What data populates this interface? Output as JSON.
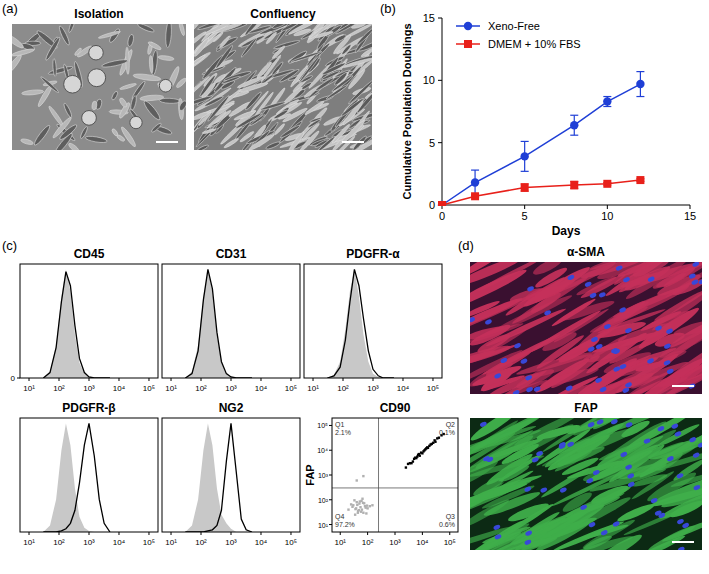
{
  "panel_labels": [
    "(a)",
    "(b)",
    "(c)",
    "(d)"
  ],
  "images": [
    {
      "title": "Isolation"
    },
    {
      "title": "Confluency"
    },
    {
      "title": "α-SMA"
    },
    {
      "title": "FAP"
    }
  ],
  "chart_data": [
    {
      "type": "line",
      "xlabel": "Days",
      "ylabel": "Cumulative Population Doublings",
      "x": [
        0,
        2,
        5,
        8,
        10,
        12
      ],
      "xlim": [
        0,
        15
      ],
      "xticks": [
        0,
        5,
        10,
        15
      ],
      "ylim": [
        0,
        15
      ],
      "yticks": [
        0,
        5,
        10,
        15
      ],
      "legend": "upper left",
      "series": [
        {
          "name": "Xeno-Free",
          "color": "#1f3fd6",
          "marker": "circle",
          "values": [
            0,
            1.8,
            3.9,
            6.4,
            8.3,
            9.7
          ],
          "error": [
            0,
            1.0,
            1.2,
            0.8,
            0.4,
            1.0
          ]
        },
        {
          "name": "DMEM + 10% FBS",
          "color": "#e8201a",
          "marker": "square",
          "values": [
            0,
            0.7,
            1.4,
            1.6,
            1.7,
            2.0
          ],
          "error": [
            0,
            0.1,
            0.3,
            0.3,
            0.1,
            0.1
          ]
        }
      ]
    },
    {
      "type": "line",
      "title": "CD45",
      "log": "x",
      "x": [
        30,
        50,
        80,
        120,
        170,
        240,
        340,
        480,
        700,
        1000,
        1500,
        2200,
        3200,
        5000
      ],
      "xlim": [
        5,
        200000
      ],
      "xticks": [
        {
          "value": 10,
          "label": "10¹"
        },
        {
          "value": 100,
          "label": "10²"
        },
        {
          "value": 1000,
          "label": "10³"
        },
        {
          "value": 10000,
          "label": "10⁴"
        },
        {
          "value": 100000,
          "label": "10⁵"
        }
      ],
      "ylim": [
        0,
        105
      ],
      "yticks": [
        0
      ],
      "series": [
        {
          "type": "area",
          "color": "#c8c8c8",
          "values": [
            0,
            6,
            30,
            75,
            100,
            80,
            40,
            14,
            4,
            1,
            0,
            0,
            0,
            0
          ]
        },
        {
          "type": "line",
          "color": "#000000",
          "values": [
            0,
            5,
            28,
            70,
            98,
            85,
            48,
            18,
            5,
            1,
            0,
            0,
            0,
            0
          ]
        }
      ]
    },
    {
      "type": "line",
      "title": "CD31",
      "log": "x",
      "tick_labels": "x",
      "x": [
        30,
        50,
        80,
        120,
        170,
        240,
        340,
        480,
        700,
        1000,
        1500,
        2200,
        3200,
        5000
      ],
      "xlim": [
        5,
        200000
      ],
      "xticks": [
        {
          "value": 10,
          "label": "10¹"
        },
        {
          "value": 100,
          "label": "10²"
        },
        {
          "value": 1000,
          "label": "10³"
        },
        {
          "value": 10000,
          "label": "10⁴"
        },
        {
          "value": 100000,
          "label": "10⁵"
        }
      ],
      "ylim": [
        0,
        105
      ],
      "series": [
        {
          "type": "area",
          "color": "#c8c8c8",
          "values": [
            0,
            6,
            30,
            75,
            100,
            80,
            40,
            14,
            4,
            1,
            0,
            0,
            0,
            0
          ]
        },
        {
          "type": "line",
          "color": "#000000",
          "values": [
            0,
            4,
            25,
            72,
            100,
            82,
            42,
            15,
            4,
            1,
            0,
            0,
            0,
            0
          ]
        }
      ]
    },
    {
      "type": "line",
      "title": "PDGFR-α",
      "log": "x",
      "tick_labels": "x",
      "x": [
        30,
        50,
        80,
        120,
        170,
        240,
        340,
        480,
        700,
        1000,
        1500,
        2200,
        3200,
        5000
      ],
      "xlim": [
        5,
        200000
      ],
      "xticks": [
        {
          "value": 10,
          "label": "10¹"
        },
        {
          "value": 100,
          "label": "10²"
        },
        {
          "value": 1000,
          "label": "10³"
        },
        {
          "value": 10000,
          "label": "10⁴"
        },
        {
          "value": 100000,
          "label": "10⁵"
        }
      ],
      "ylim": [
        0,
        105
      ],
      "series": [
        {
          "type": "area",
          "color": "#c8c8c8",
          "values": [
            0,
            3,
            15,
            45,
            80,
            100,
            75,
            40,
            15,
            4,
            1,
            0,
            0,
            0
          ]
        },
        {
          "type": "line",
          "color": "#000000",
          "values": [
            0,
            2,
            10,
            35,
            70,
            100,
            85,
            55,
            25,
            8,
            2,
            0,
            0,
            0
          ]
        }
      ]
    },
    {
      "type": "line",
      "title": "PDGFR-β",
      "log": "x",
      "tick_labels": "x",
      "x": [
        30,
        50,
        80,
        120,
        170,
        240,
        340,
        480,
        700,
        1000,
        1500,
        2200,
        3200,
        5000
      ],
      "xlim": [
        5,
        200000
      ],
      "xticks": [
        {
          "value": 10,
          "label": "10¹"
        },
        {
          "value": 100,
          "label": "10²"
        },
        {
          "value": 1000,
          "label": "10³"
        },
        {
          "value": 10000,
          "label": "10⁴"
        },
        {
          "value": 100000,
          "label": "10⁵"
        }
      ],
      "ylim": [
        0,
        105
      ],
      "series": [
        {
          "type": "area",
          "color": "#c8c8c8",
          "values": [
            0,
            6,
            30,
            75,
            100,
            80,
            40,
            14,
            4,
            1,
            0,
            0,
            0,
            0
          ]
        },
        {
          "type": "line",
          "color": "#000000",
          "values": [
            0,
            0,
            0,
            1,
            3,
            8,
            20,
            45,
            80,
            100,
            70,
            30,
            8,
            0
          ]
        }
      ]
    },
    {
      "type": "line",
      "title": "NG2",
      "log": "x",
      "tick_labels": "x",
      "x": [
        30,
        50,
        80,
        120,
        170,
        240,
        340,
        480,
        700,
        1000,
        1500,
        2200,
        3200,
        5000
      ],
      "xlim": [
        5,
        200000
      ],
      "xticks": [
        {
          "value": 10,
          "label": "10¹"
        },
        {
          "value": 100,
          "label": "10²"
        },
        {
          "value": 1000,
          "label": "10³"
        },
        {
          "value": 10000,
          "label": "10⁴"
        },
        {
          "value": 100000,
          "label": "10⁵"
        }
      ],
      "ylim": [
        0,
        105
      ],
      "series": [
        {
          "type": "area",
          "color": "#c8c8c8",
          "values": [
            0,
            6,
            30,
            75,
            100,
            80,
            40,
            16,
            8,
            3,
            0,
            0,
            0,
            0
          ]
        },
        {
          "type": "line",
          "color": "#000000",
          "values": [
            0,
            0,
            0,
            0,
            1,
            2,
            6,
            20,
            65,
            100,
            55,
            12,
            2,
            0
          ]
        }
      ]
    },
    {
      "type": "scatter",
      "title": "CD90",
      "ylabel": "FAP",
      "log": true,
      "xlim": [
        5,
        200000
      ],
      "xticks": [
        {
          "value": 10,
          "label": "10¹"
        },
        {
          "value": 100,
          "label": "10²"
        },
        {
          "value": 1000,
          "label": "10³"
        },
        {
          "value": 10000,
          "label": "10⁴"
        },
        {
          "value": 100000,
          "label": "10⁵"
        }
      ],
      "ylim": [
        5,
        200000
      ],
      "yticks": [
        {
          "value": 10,
          "label": "10¹"
        },
        {
          "value": 100,
          "label": "10²"
        },
        {
          "value": 1000,
          "label": "10³"
        },
        {
          "value": 10000,
          "label": "10⁴"
        },
        {
          "value": 100000,
          "label": "10⁵"
        }
      ],
      "gate_x": 250,
      "gate_y": 300,
      "quadrants": [
        {
          "name": "Q1",
          "percent": 2.1,
          "percent_label": "2.1%"
        },
        {
          "name": "Q2",
          "percent": 0.1,
          "percent_label": "0.1%"
        },
        {
          "name": "Q3",
          "percent": 0.6,
          "percent_label": "0.6%"
        },
        {
          "name": "Q4",
          "percent": 97.2,
          "percent_label": "97.2%"
        }
      ],
      "series": [
        {
          "color": "#b0b0b0",
          "marker": "square",
          "x": [
            20,
            35,
            50,
            80,
            45,
            60,
            30,
            100,
            70,
            40,
            55,
            25,
            90,
            65,
            38,
            48,
            75,
            120,
            33,
            58,
            42,
            85,
            28,
            62,
            52,
            150,
            44,
            68,
            36,
            95,
            40,
            70
          ],
          "values": [
            40,
            25,
            70,
            55,
            35,
            90,
            60,
            45,
            30,
            80,
            50,
            65,
            28,
            110,
            45,
            38,
            72,
            55,
            95,
            33,
            62,
            48,
            52,
            40,
            85,
            60,
            30,
            75,
            42,
            58,
            600,
            900
          ]
        },
        {
          "color": "#000000",
          "marker": "square",
          "x": [
            2500,
            3000,
            4000,
            5000,
            6000,
            7000,
            8000,
            9000,
            10000,
            12000,
            14000,
            16000,
            18000,
            20000,
            25000,
            30000,
            35000,
            40000,
            50000,
            60000,
            3500,
            4500,
            5500,
            6500,
            7500,
            11000,
            13000,
            15000,
            22000,
            28000
          ],
          "values": [
            2000,
            2800,
            3000,
            4500,
            4800,
            6500,
            6000,
            8000,
            7500,
            10000,
            12000,
            12500,
            15000,
            17000,
            20000,
            22000,
            30000,
            32000,
            40000,
            45000,
            3000,
            3500,
            5000,
            5500,
            7000,
            9000,
            11000,
            13000,
            18000,
            25000
          ]
        }
      ]
    }
  ]
}
